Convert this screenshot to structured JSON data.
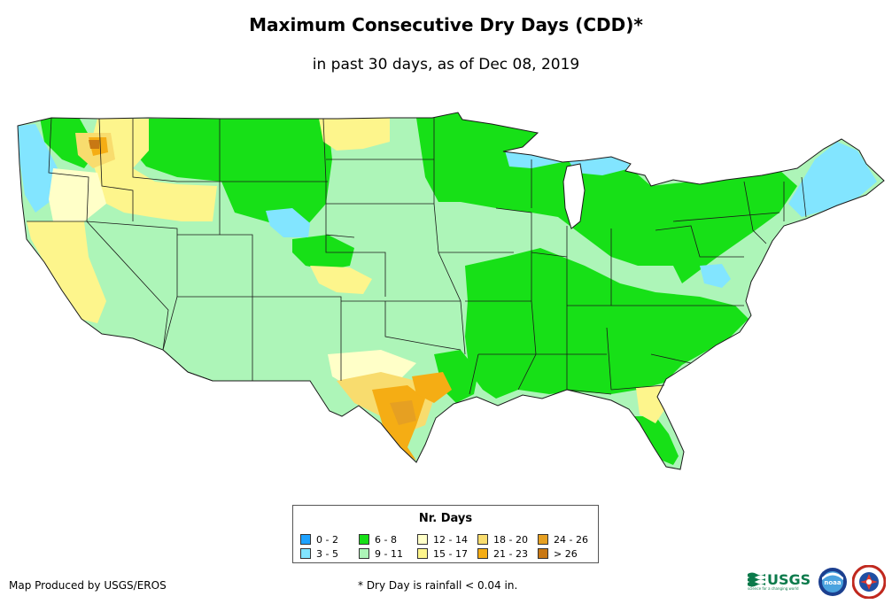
{
  "header": {
    "title": "Maximum Consecutive Dry Days (CDD)*",
    "subtitle": "in past 30 days, as of Dec 08, 2019"
  },
  "map": {
    "region": "Contiguous United States",
    "base_color": "#adf5b8",
    "border_color": "#1a1a1a"
  },
  "legend": {
    "title": "Nr. Days",
    "items": [
      {
        "label": "0 - 2",
        "color": "#1ea2ff"
      },
      {
        "label": "3 - 5",
        "color": "#82e5ff"
      },
      {
        "label": "6 - 8",
        "color": "#17e017"
      },
      {
        "label": "9 - 11",
        "color": "#adf5b8"
      },
      {
        "label": "12 - 14",
        "color": "#ffffc8"
      },
      {
        "label": "15 - 17",
        "color": "#fdf58c"
      },
      {
        "label": "18 - 20",
        "color": "#f8dc6e"
      },
      {
        "label": "21 - 23",
        "color": "#f5ad14"
      },
      {
        "label": "24 - 26",
        "color": "#e6a022"
      },
      {
        "label": "> 26",
        "color": "#c87814"
      }
    ]
  },
  "footer": {
    "credit": "Map Produced by USGS/EROS",
    "footnote": "* Dry Day is rainfall < 0.04 in.",
    "usgs_logo_text": "USGS",
    "usgs_tagline": "science for a changing world",
    "noaa_logo_text": "noaa"
  }
}
